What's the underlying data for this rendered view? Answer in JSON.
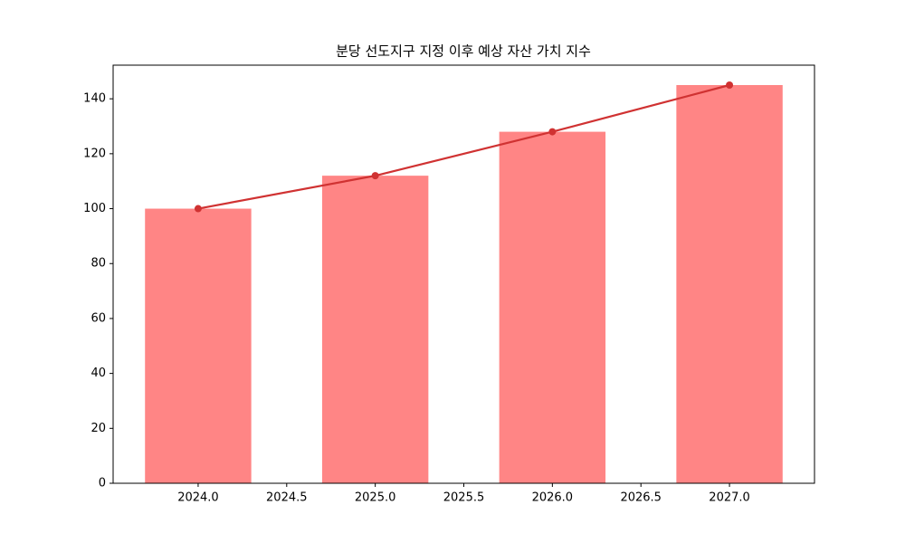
{
  "chart_data": {
    "type": "combo",
    "title": "분당 선도지구 지정 이후 예상 자산 가치 지수",
    "x": [
      2024,
      2025,
      2026,
      2027
    ],
    "series": [
      {
        "type": "bar",
        "color": "#ff8585",
        "values": [
          100,
          112,
          128,
          145
        ]
      },
      {
        "type": "line",
        "color": "#d03232",
        "values": [
          100,
          112,
          128,
          145
        ]
      }
    ],
    "xlim": [
      2023.52,
      2027.48
    ],
    "xticks": [
      {
        "value": 2024,
        "label": "2024.0"
      },
      {
        "value": 2024.5,
        "label": "2024.5"
      },
      {
        "value": 2025,
        "label": "2025.0"
      },
      {
        "value": 2025.5,
        "label": "2025.5"
      },
      {
        "value": 2026,
        "label": "2026.0"
      },
      {
        "value": 2026.5,
        "label": "2026.5"
      },
      {
        "value": 2027,
        "label": "2027.0"
      }
    ],
    "ylim": [
      0,
      152.25
    ],
    "yticks": [
      0,
      20,
      40,
      60,
      80,
      100,
      120,
      140
    ]
  }
}
